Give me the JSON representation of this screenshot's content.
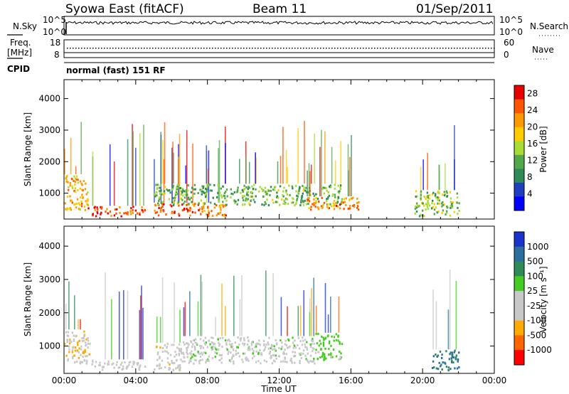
{
  "header": {
    "left": "Syowa East (fitACF)",
    "center": "Beam 11",
    "right": "01/Sep/2011"
  },
  "nsky_panel": {
    "left_label": "N.Sky",
    "right_label": "N.Search",
    "tick_top": "10^5",
    "tick_bottom": "10^0",
    "right_tick_top": "10^5",
    "right_tick_bottom": "10^0"
  },
  "freq_panel": {
    "left_label_1": "Freq.",
    "left_label_2": "[MHz]",
    "left_tick_top": "18",
    "left_tick_bottom": "8",
    "right_label": "Nave",
    "right_tick_top": "60",
    "right_tick_bottom": "0"
  },
  "cpid": {
    "label": "CPID",
    "text": "normal (fast) 151 RF"
  },
  "colors": {
    "power_scale": [
      "#0000ff",
      "#1e3fbf",
      "#2e8b57",
      "#55a84a",
      "#aadd33",
      "#ffcc00",
      "#ff9900",
      "#ff5500",
      "#e60000"
    ],
    "velocity_scale": [
      "#1a33cc",
      "#2a6fa0",
      "#2e8b57",
      "#44cc22",
      "#c8c8c8",
      "#c8c8c8",
      "#ffaa00",
      "#ff6600",
      "#ff0000"
    ]
  },
  "chart_data": [
    {
      "type": "heatmap",
      "title": "Power",
      "xlabel": "",
      "ylabel": "Slant Range [km]",
      "xlim": [
        "00:00",
        "24:00"
      ],
      "ylim": [
        180,
        4600
      ],
      "x_tick_labels": [
        "00:00",
        "04:00",
        "08:00",
        "12:00",
        "16:00",
        "20:00",
        "00:00"
      ],
      "y_ticks": [
        1000,
        2000,
        3000,
        4000
      ],
      "y_tick_labels": [
        "1000",
        "2000",
        "3000",
        "4000"
      ],
      "colorbar": {
        "label": "Power [dB]",
        "range": [
          0,
          30
        ],
        "tick_values": [
          4,
          8,
          12,
          16,
          20,
          24,
          28
        ],
        "tick_labels": [
          "4",
          "8",
          "12",
          "16",
          "20",
          "24",
          "28"
        ]
      },
      "echo_regions": [
        {
          "t0": 0.0,
          "t1": 1.3,
          "r0": 500,
          "r1": 1600,
          "level": 20
        },
        {
          "t0": 1.3,
          "t1": 4.5,
          "r0": 300,
          "r1": 600,
          "level": 26
        },
        {
          "t0": 5.0,
          "t1": 9.0,
          "r0": 300,
          "r1": 700,
          "level": 24
        },
        {
          "t0": 5.0,
          "t1": 15.5,
          "r0": 650,
          "r1": 1300,
          "level": 12
        },
        {
          "t0": 13.5,
          "t1": 16.5,
          "r0": 500,
          "r1": 900,
          "level": 22
        },
        {
          "t0": 19.5,
          "t1": 22.0,
          "r0": 300,
          "r1": 1100,
          "level": 14
        }
      ]
    },
    {
      "type": "heatmap",
      "title": "Velocity",
      "xlabel": "Time UT",
      "ylabel": "Slant Range [km]",
      "xlim": [
        "00:00",
        "24:00"
      ],
      "ylim": [
        180,
        4600
      ],
      "x_tick_labels": [
        "00:00",
        "04:00",
        "08:00",
        "12:00",
        "16:00",
        "20:00",
        "00:00"
      ],
      "y_ticks": [
        1000,
        2000,
        3000,
        4000
      ],
      "y_tick_labels": [
        "1000",
        "2000",
        "3000",
        "4000"
      ],
      "colorbar": {
        "label": "Velocity [m s⁻¹]",
        "tick_labels": [
          "1000",
          "500",
          "100",
          "25",
          "-25",
          "-100",
          "-500",
          "-1000"
        ]
      },
      "echo_regions": [
        {
          "t0": 0.0,
          "t1": 1.5,
          "r0": 500,
          "r1": 1500,
          "level": -300
        },
        {
          "t0": 1.5,
          "t1": 4.5,
          "r0": 300,
          "r1": 600,
          "level": -100
        },
        {
          "t0": 5.0,
          "t1": 6.5,
          "r0": 300,
          "r1": 1100,
          "level": -200
        },
        {
          "t0": 6.5,
          "t1": 14.0,
          "r0": 500,
          "r1": 1300,
          "level": 0
        },
        {
          "t0": 14.0,
          "t1": 15.5,
          "r0": 600,
          "r1": 1400,
          "level": 200
        },
        {
          "t0": 20.5,
          "t1": 22.0,
          "r0": 300,
          "r1": 900,
          "level": 600
        }
      ]
    }
  ]
}
